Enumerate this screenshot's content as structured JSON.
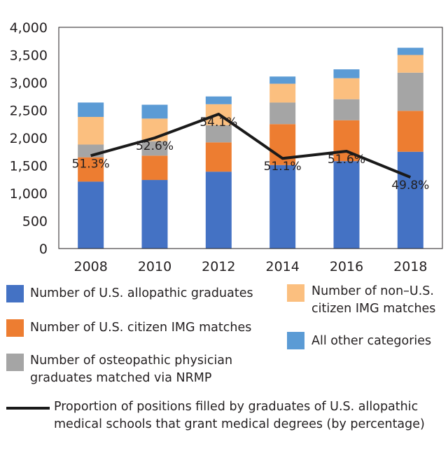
{
  "chart_data": {
    "type": "bar",
    "stacked": true,
    "categories": [
      "2008",
      "2010",
      "2012",
      "2014",
      "2016",
      "2018"
    ],
    "ylim": [
      0,
      4000
    ],
    "yticks": [
      0,
      500,
      1000,
      1500,
      2000,
      2500,
      3000,
      3500,
      4000
    ],
    "ytick_labels": [
      "0",
      "500",
      "1,000",
      "1,500",
      "2,000",
      "2,500",
      "3,000",
      "3,500",
      "4,000"
    ],
    "grid": false,
    "series": [
      {
        "name": "Number of U.S. allopathic graduates",
        "color": "#4472c4",
        "values": [
          1210,
          1240,
          1390,
          1510,
          1580,
          1750
        ]
      },
      {
        "name": "Number of U.S. citizen IMG matches",
        "color": "#ed7d31",
        "values": [
          440,
          440,
          530,
          740,
          740,
          740
        ]
      },
      {
        "name": "Number of osteopathic physician graduates matched via NRMP",
        "color": "#a5a5a5",
        "values": [
          230,
          260,
          310,
          390,
          380,
          690
        ]
      },
      {
        "name": "Number of non–U.S. citizen IMG matches",
        "color": "#fbbf7f",
        "values": [
          500,
          410,
          380,
          340,
          380,
          320
        ]
      },
      {
        "name": "All other categories",
        "color": "#5b9bd5",
        "values": [
          260,
          250,
          140,
          130,
          160,
          130
        ]
      }
    ],
    "line_series": {
      "name": "Proportion of positions filled by graduates of U.S. allopathic medical schools that grant medical degrees (by percentage)",
      "color": "#1a1a1a",
      "anchor_values": [
        1680,
        2000,
        2430,
        1630,
        1760,
        1290
      ],
      "labels": [
        "51.3%",
        "52.6%",
        "54.1%",
        "51.1%",
        "51.6%",
        "49.8%"
      ]
    }
  },
  "legend": {
    "allopathic": "Number of U.S. allopathic graduates",
    "citizen_img": "Number of U.S. citizen IMG matches",
    "osteopathic_1": "Number of osteopathic physician",
    "osteopathic_2": "graduates matched via NRMP",
    "non_citizen_1": "Number of non–U.S.",
    "non_citizen_2": "citizen IMG matches",
    "other": "All other categories",
    "line_1": "Proportion of positions filled by graduates of U.S. allopathic",
    "line_2": "medical schools that grant medical degrees (by percentage)"
  }
}
